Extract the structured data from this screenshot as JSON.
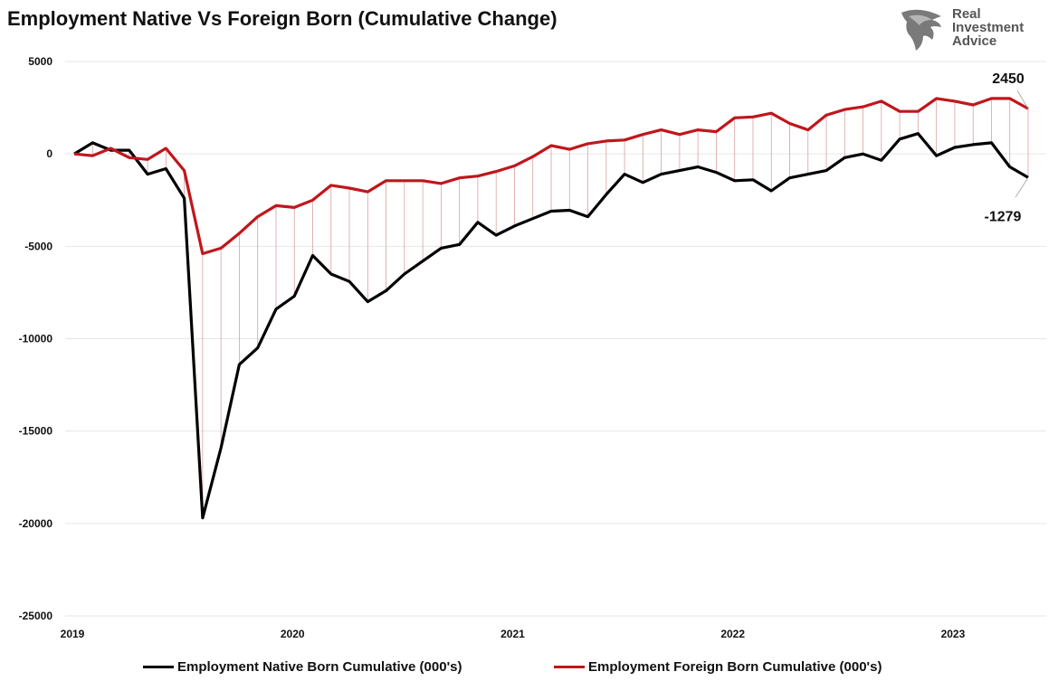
{
  "title": "Employment Native Vs Foreign Born (Cumulative Change)",
  "logo": {
    "line1": "Real",
    "line2": "Investment",
    "line3": "Advice"
  },
  "colors": {
    "native": "#000000",
    "foreign": "#c0161c",
    "droplines": "#d9a0a0",
    "grid": "#e6e6e6"
  },
  "chart_data": {
    "type": "line",
    "title": "Employment Native Vs Foreign Born (Cumulative Change)",
    "ylim": [
      -25000,
      5000
    ],
    "yticks": [
      5000,
      0,
      -5000,
      -10000,
      -15000,
      -20000,
      -25000
    ],
    "xticks": [
      "2019",
      "2020",
      "2021",
      "2022",
      "2023"
    ],
    "x_start": "2019-01",
    "x_end": "2023-05",
    "grid": true,
    "legend_position": "bottom",
    "annotations": [
      {
        "series": "Employment Foreign Born Cumulative (000's)",
        "text": "2450"
      },
      {
        "series": "Employment Native Born Cumulative (000's)",
        "text": "-1279"
      }
    ],
    "x": [
      "2019-01",
      "2019-02",
      "2019-03",
      "2019-04",
      "2019-05",
      "2019-06",
      "2019-07",
      "2019-08",
      "2019-09",
      "2019-10",
      "2019-11",
      "2019-12",
      "2020-01",
      "2020-02",
      "2020-03",
      "2020-04",
      "2020-05",
      "2020-06",
      "2020-07",
      "2020-08",
      "2020-09",
      "2020-10",
      "2020-11",
      "2020-12",
      "2021-01",
      "2021-02",
      "2021-03",
      "2021-04",
      "2021-05",
      "2021-06",
      "2021-07",
      "2021-08",
      "2021-09",
      "2021-10",
      "2021-11",
      "2021-12",
      "2022-01",
      "2022-02",
      "2022-03",
      "2022-04",
      "2022-05",
      "2022-06",
      "2022-07",
      "2022-08",
      "2022-09",
      "2022-10",
      "2022-11",
      "2022-12",
      "2023-01",
      "2023-02",
      "2023-03",
      "2023-04",
      "2023-05"
    ],
    "series": [
      {
        "name": "Employment Native Born Cumulative (000's)",
        "color": "#000000",
        "values": [
          0,
          600,
          200,
          200,
          -1100,
          -800,
          -2400,
          -19700,
          -15900,
          -11400,
          -10500,
          -8400,
          -7700,
          -5500,
          -6500,
          -6900,
          -8000,
          -7400,
          -6500,
          -5800,
          -5100,
          -4900,
          -3700,
          -4400,
          -3900,
          -3500,
          -3100,
          -3050,
          -3400,
          -2200,
          -1100,
          -1550,
          -1100,
          -900,
          -700,
          -1000,
          -1450,
          -1400,
          -2000,
          -1300,
          -1100,
          -900,
          -200,
          0,
          -350,
          800,
          1100,
          -100,
          350,
          500,
          600,
          -700,
          -1279
        ]
      },
      {
        "name": "Employment Foreign Born Cumulative (000's)",
        "color": "#c0161c",
        "values": [
          0,
          -100,
          300,
          -200,
          -300,
          300,
          -900,
          -5400,
          -5100,
          -4300,
          -3400,
          -2800,
          -2900,
          -2500,
          -1700,
          -1850,
          -2050,
          -1450,
          -1450,
          -1450,
          -1600,
          -1300,
          -1200,
          -950,
          -650,
          -150,
          450,
          250,
          550,
          700,
          750,
          1050,
          1300,
          1050,
          1300,
          1200,
          1950,
          2000,
          2200,
          1650,
          1300,
          2100,
          2400,
          2550,
          2850,
          2300,
          2300,
          3000,
          2850,
          2650,
          3000,
          3000,
          2450
        ]
      }
    ]
  }
}
